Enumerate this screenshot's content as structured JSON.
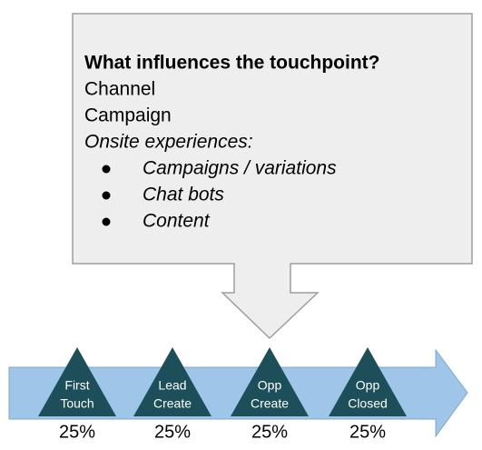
{
  "callout": {
    "title": "What influences the touchpoint?",
    "lines": [
      "Channel",
      "Campaign"
    ],
    "subheading": "Onsite experiences:",
    "bullets": [
      "Campaigns / variations",
      "Chat bots",
      "Content"
    ]
  },
  "stages": [
    {
      "label": [
        "First",
        "Touch"
      ],
      "share": "25%"
    },
    {
      "label": [
        "Lead",
        "Create"
      ],
      "share": "25%"
    },
    {
      "label": [
        "Opp",
        "Create"
      ],
      "share": "25%"
    },
    {
      "label": [
        "Opp",
        "Closed"
      ],
      "share": "25%"
    }
  ]
}
